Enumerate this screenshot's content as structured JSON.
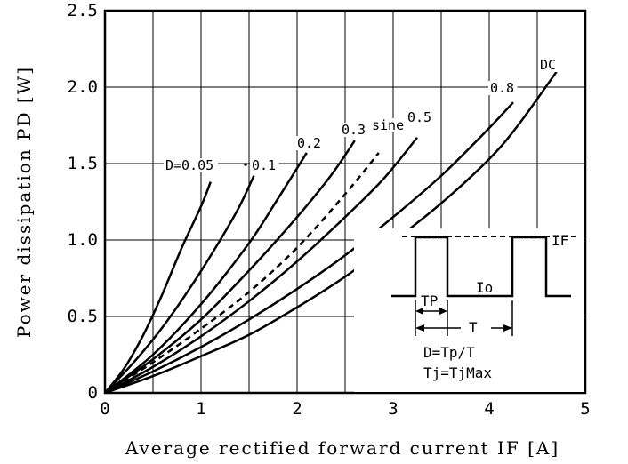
{
  "chart_data": {
    "type": "line",
    "title": "",
    "xlabel": "Average rectified forward current IF [A]",
    "ylabel": "Power dissipation PD [W]",
    "xlim": [
      0,
      5
    ],
    "ylim": [
      0,
      2.5
    ],
    "x_ticks": [
      0,
      1,
      2,
      3,
      4,
      5
    ],
    "x_tick_labels": [
      "0",
      "1",
      "2",
      "3",
      "4",
      "5"
    ],
    "y_ticks": [
      0,
      0.5,
      1.0,
      1.5,
      2.0,
      2.5
    ],
    "y_tick_labels": [
      "0",
      "0.5",
      "1.0",
      "1.5",
      "2.0",
      "2.5"
    ],
    "grid": true,
    "series": [
      {
        "name": "D=0.05",
        "style": "solid",
        "x": [
          0,
          0.2,
          0.4,
          0.6,
          0.8,
          1.0,
          1.1
        ],
        "y": [
          0,
          0.16,
          0.38,
          0.65,
          0.95,
          1.22,
          1.38
        ]
      },
      {
        "name": "0.1",
        "style": "solid",
        "x": [
          0,
          0.3,
          0.6,
          0.9,
          1.2,
          1.4,
          1.55
        ],
        "y": [
          0,
          0.2,
          0.43,
          0.7,
          1.0,
          1.22,
          1.42
        ]
      },
      {
        "name": "0.2",
        "style": "solid",
        "x": [
          0,
          0.5,
          1.0,
          1.5,
          1.8,
          2.1
        ],
        "y": [
          0,
          0.25,
          0.58,
          0.98,
          1.27,
          1.57
        ]
      },
      {
        "name": "0.3",
        "style": "solid",
        "x": [
          0,
          0.5,
          1.0,
          1.5,
          2.0,
          2.35,
          2.6
        ],
        "y": [
          0,
          0.22,
          0.48,
          0.8,
          1.15,
          1.42,
          1.65
        ]
      },
      {
        "name": "sine",
        "style": "dashed",
        "x": [
          0,
          0.5,
          1.0,
          1.5,
          2.0,
          2.5,
          2.85
        ],
        "y": [
          0,
          0.2,
          0.42,
          0.66,
          0.95,
          1.3,
          1.57
        ]
      },
      {
        "name": "0.5",
        "style": "solid",
        "x": [
          0,
          0.5,
          1.0,
          1.5,
          2.0,
          2.5,
          2.9,
          3.25
        ],
        "y": [
          0,
          0.17,
          0.37,
          0.6,
          0.86,
          1.15,
          1.4,
          1.67
        ]
      },
      {
        "name": "0.8",
        "style": "solid",
        "x": [
          0,
          0.5,
          1.0,
          1.5,
          2.0,
          2.5,
          3.0,
          3.5,
          3.95,
          4.25
        ],
        "y": [
          0,
          0.14,
          0.3,
          0.48,
          0.68,
          0.9,
          1.15,
          1.42,
          1.7,
          1.9
        ]
      },
      {
        "name": "DC",
        "style": "solid",
        "x": [
          0,
          0.5,
          1.0,
          1.5,
          2.0,
          2.5,
          3.0,
          3.5,
          4.0,
          4.3,
          4.7
        ],
        "y": [
          0,
          0.11,
          0.24,
          0.38,
          0.56,
          0.76,
          0.99,
          1.24,
          1.53,
          1.75,
          2.1
        ]
      }
    ],
    "annotations": {
      "curve_label_prefix": "D=",
      "labels": [
        "0.05",
        "0.1",
        "0.2",
        "0.3",
        "sine",
        "0.5",
        "0.8",
        "DC"
      ]
    },
    "inset": {
      "peak_label": "IF",
      "avg_label": "Io",
      "pulse_width_label": "TP",
      "period_label": "T",
      "formula_duty": "D=Tp/T",
      "formula_tj": "Tj=TjMax"
    }
  }
}
